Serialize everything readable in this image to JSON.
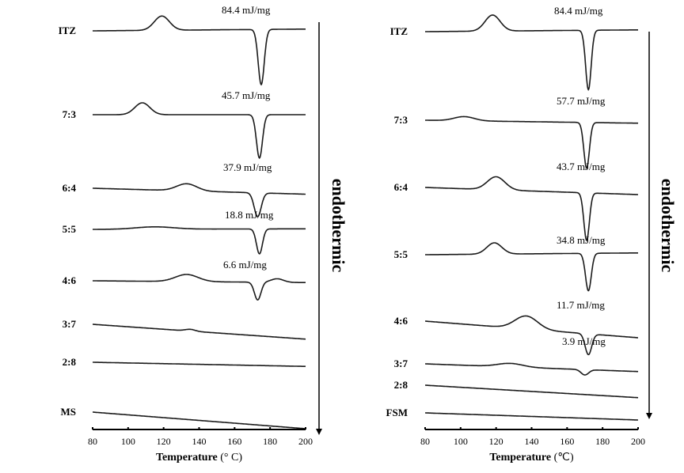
{
  "chart_data": [
    {
      "type": "line",
      "panel": "left",
      "xlabel_bold": "Temperature",
      "xlabel_unit": " (° C)",
      "xlim": [
        80,
        200
      ],
      "xticks": [
        "80",
        "100",
        "120",
        "140",
        "160",
        "180",
        "200"
      ],
      "ylabel": "endothermic",
      "y_units": "relative heat flow (a.u.), stacked",
      "series": [
        {
          "name": "ITZ",
          "annotation": "84.4  mJ/mg",
          "drift": 0.03,
          "exo": {
            "T": 119,
            "h": 0.24,
            "w": 6
          },
          "endo": {
            "T": 175,
            "d": 0.93,
            "w": 2.4
          }
        },
        {
          "name": "7:3",
          "annotation": "45.7 mJ/mg",
          "drift": 0.0,
          "exo": {
            "T": 108,
            "h": 0.2,
            "w": 6
          },
          "endo": {
            "T": 174,
            "d": 0.73,
            "w": 2.4
          }
        },
        {
          "name": "6:4",
          "annotation": "37.9 mJ/mg",
          "drift": -0.1,
          "exo": {
            "T": 133,
            "h": 0.12,
            "w": 8
          },
          "endo": {
            "T": 173,
            "d": 0.4,
            "w": 2.8
          }
        },
        {
          "name": "5:5",
          "annotation": "18.8 mJ/mg",
          "drift": 0.01,
          "exo": {
            "T": 115,
            "h": 0.04,
            "w": 15
          },
          "endo": {
            "T": 174,
            "d": 0.42,
            "w": 2.4
          }
        },
        {
          "name": "4:6",
          "annotation": "6.6 mJ/mg",
          "drift": -0.03,
          "exo": {
            "T": 133,
            "h": 0.12,
            "w": 9
          },
          "endo": {
            "T": 173,
            "d": 0.3,
            "w": 2.6
          },
          "exo2": {
            "T": 184,
            "h": 0.06,
            "w": 5
          }
        },
        {
          "name": "3:7",
          "annotation": "",
          "drift": -0.25,
          "exo": {
            "T": 135,
            "h": 0.03,
            "w": 4
          }
        },
        {
          "name": "2:8",
          "annotation": "",
          "drift": -0.07
        },
        {
          "name": "MS",
          "annotation": "",
          "drift": -0.28
        }
      ]
    },
    {
      "type": "line",
      "panel": "right",
      "xlabel_bold": "Temperature",
      "xlabel_unit": " (℃)",
      "xlim": [
        80,
        200
      ],
      "xticks": [
        "80",
        "100",
        "120",
        "140",
        "160",
        "180",
        "200"
      ],
      "ylabel": "endothermic",
      "y_units": "relative heat flow (a.u.), stacked",
      "series": [
        {
          "name": "ITZ",
          "annotation": "84.4  mJ/mg",
          "drift": 0.03,
          "exo": {
            "T": 118,
            "h": 0.27,
            "w": 6
          },
          "endo": {
            "T": 172,
            "d": 1.0,
            "w": 2.2
          }
        },
        {
          "name": "7:3",
          "annotation": "57.7 mJ/mg",
          "drift": -0.05,
          "exo": {
            "T": 102,
            "h": 0.07,
            "w": 8
          },
          "endo": {
            "T": 171,
            "d": 0.77,
            "w": 2.2
          }
        },
        {
          "name": "6:4",
          "annotation": "43.7 mJ/mg",
          "drift": -0.12,
          "exo": {
            "T": 120,
            "h": 0.22,
            "w": 7
          },
          "endo": {
            "T": 171,
            "d": 0.8,
            "w": 2.2
          }
        },
        {
          "name": "5:5",
          "annotation": "34.8 mJ/mg",
          "drift": 0.03,
          "exo": {
            "T": 119,
            "h": 0.19,
            "w": 6
          },
          "endo": {
            "T": 172,
            "d": 0.63,
            "w": 2.3
          }
        },
        {
          "name": "4:6",
          "annotation": "11.7 mJ/mg",
          "drift": -0.28,
          "exo": {
            "T": 137,
            "h": 0.22,
            "w": 9
          },
          "endo": {
            "T": 172,
            "d": 0.35,
            "w": 2.6
          }
        },
        {
          "name": "3:7",
          "annotation": "3.9 mJ/mg",
          "drift": -0.13,
          "exo": {
            "T": 128,
            "h": 0.06,
            "w": 10
          },
          "endo": {
            "T": 170,
            "d": 0.09,
            "w": 3
          }
        },
        {
          "name": "2:8",
          "annotation": "",
          "drift": -0.21
        },
        {
          "name": "FSM",
          "annotation": "",
          "drift": -0.12
        }
      ]
    }
  ]
}
